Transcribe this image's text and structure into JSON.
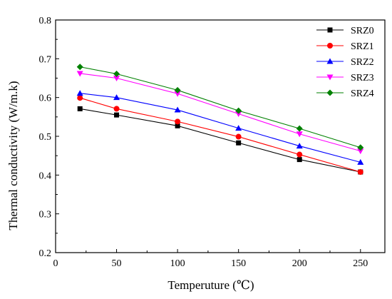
{
  "chart_data": {
    "type": "line",
    "xlabel": "Temperuture (℃)",
    "ylabel": "Thermal conductivity (W/m.k)",
    "xlim": [
      0,
      270
    ],
    "ylim": [
      0.2,
      0.8
    ],
    "xticks": [
      0,
      50,
      100,
      150,
      200,
      250
    ],
    "yticks": [
      0.2,
      0.3,
      0.4,
      0.5,
      0.6,
      0.7,
      0.8
    ],
    "grid": false,
    "legend_position": "top-right",
    "x": [
      20,
      50,
      100,
      150,
      200,
      250
    ],
    "series": [
      {
        "name": "SRZ0",
        "values": [
          0.571,
          0.555,
          0.527,
          0.483,
          0.44,
          0.408
        ],
        "color": "#000000",
        "marker": "square"
      },
      {
        "name": "SRZ1",
        "values": [
          0.599,
          0.571,
          0.538,
          0.499,
          0.453,
          0.408
        ],
        "color": "#ff0000",
        "marker": "circle"
      },
      {
        "name": "SRZ2",
        "values": [
          0.611,
          0.6,
          0.568,
          0.521,
          0.475,
          0.433
        ],
        "color": "#0000ff",
        "marker": "triangle-up"
      },
      {
        "name": "SRZ3",
        "values": [
          0.662,
          0.65,
          0.61,
          0.558,
          0.506,
          0.462
        ],
        "color": "#ff00ff",
        "marker": "triangle-down"
      },
      {
        "name": "SRZ4",
        "values": [
          0.679,
          0.661,
          0.619,
          0.566,
          0.52,
          0.471
        ],
        "color": "#008000",
        "marker": "diamond"
      }
    ]
  }
}
